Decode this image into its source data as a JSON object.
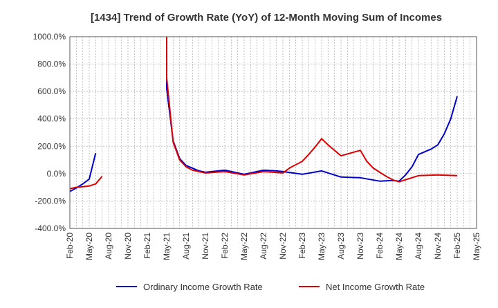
{
  "chart_data": {
    "type": "line",
    "title": "[1434]  Trend of Growth Rate (YoY) of 12-Month Moving Sum of Incomes",
    "xlabel": "",
    "ylabel": "",
    "ylim": [
      -400,
      1000
    ],
    "yticks": [
      -400,
      -200,
      0,
      200,
      400,
      600,
      800,
      1000
    ],
    "ytick_labels": [
      "-400.0%",
      "-200.0%",
      "0.0%",
      "200.0%",
      "400.0%",
      "600.0%",
      "800.0%",
      "1000.0%"
    ],
    "xlim": [
      "2020-02",
      "2025-05"
    ],
    "xtick_labels": [
      "Feb-20",
      "May-20",
      "Aug-20",
      "Nov-20",
      "Feb-21",
      "May-21",
      "Aug-21",
      "Nov-21",
      "Feb-22",
      "May-22",
      "Aug-22",
      "Nov-22",
      "Feb-23",
      "May-23",
      "Aug-23",
      "Nov-23",
      "Feb-24",
      "May-24",
      "Aug-24",
      "Nov-24",
      "Feb-25",
      "May-25"
    ],
    "grid": true,
    "legend_position": "bottom",
    "series": [
      {
        "name": "Ordinary Income Growth Rate",
        "color": "#0000cc",
        "points": [
          [
            "2020-02",
            -130
          ],
          [
            "2020-03",
            -105
          ],
          [
            "2020-04",
            -75
          ],
          [
            "2020-05",
            -40
          ],
          [
            "2020-06",
            150
          ],
          [
            "2021-05",
            1000
          ],
          [
            "2021-05",
            620
          ],
          [
            "2021-06",
            240
          ],
          [
            "2021-07",
            110
          ],
          [
            "2021-08",
            60
          ],
          [
            "2021-09",
            40
          ],
          [
            "2021-10",
            20
          ],
          [
            "2021-11",
            10
          ],
          [
            "2021-12",
            15
          ],
          [
            "2022-01",
            20
          ],
          [
            "2022-02",
            25
          ],
          [
            "2022-03",
            15
          ],
          [
            "2022-05",
            -5
          ],
          [
            "2022-08",
            25
          ],
          [
            "2022-10",
            20
          ],
          [
            "2022-11",
            15
          ],
          [
            "2023-02",
            -5
          ],
          [
            "2023-05",
            20
          ],
          [
            "2023-08",
            -25
          ],
          [
            "2023-11",
            -30
          ],
          [
            "2024-02",
            -55
          ],
          [
            "2024-04",
            -50
          ],
          [
            "2024-05",
            -55
          ],
          [
            "2024-06",
            -10
          ],
          [
            "2024-07",
            50
          ],
          [
            "2024-08",
            140
          ],
          [
            "2024-10",
            180
          ],
          [
            "2024-11",
            210
          ],
          [
            "2024-12",
            290
          ],
          [
            "2025-01",
            400
          ],
          [
            "2025-02",
            565
          ]
        ]
      },
      {
        "name": "Net Income Growth Rate",
        "color": "#dd0000",
        "points": [
          [
            "2020-02",
            -110
          ],
          [
            "2020-03",
            -100
          ],
          [
            "2020-04",
            -95
          ],
          [
            "2020-05",
            -90
          ],
          [
            "2020-06",
            -75
          ],
          [
            "2020-07",
            -20
          ],
          [
            "2021-05",
            1000
          ],
          [
            "2021-05",
            700
          ],
          [
            "2021-06",
            230
          ],
          [
            "2021-07",
            100
          ],
          [
            "2021-08",
            50
          ],
          [
            "2021-09",
            25
          ],
          [
            "2021-11",
            5
          ],
          [
            "2022-02",
            15
          ],
          [
            "2022-05",
            -10
          ],
          [
            "2022-08",
            15
          ],
          [
            "2022-11",
            5
          ],
          [
            "2022-12",
            40
          ],
          [
            "2023-02",
            90
          ],
          [
            "2023-03",
            140
          ],
          [
            "2023-04",
            195
          ],
          [
            "2023-05",
            255
          ],
          [
            "2023-06",
            210
          ],
          [
            "2023-08",
            130
          ],
          [
            "2023-11",
            170
          ],
          [
            "2023-12",
            90
          ],
          [
            "2024-01",
            40
          ],
          [
            "2024-03",
            -20
          ],
          [
            "2024-04",
            -45
          ],
          [
            "2024-05",
            -60
          ],
          [
            "2024-08",
            -15
          ],
          [
            "2024-11",
            -10
          ],
          [
            "2025-02",
            -15
          ]
        ]
      }
    ]
  }
}
